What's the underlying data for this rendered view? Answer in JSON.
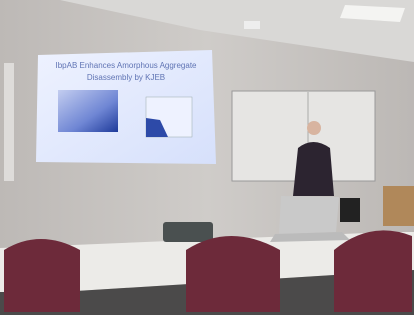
{
  "slide": {
    "title_lines": [
      "IbpAB Enhances Amorphous Aggregate",
      "Disassembly by KJEB"
    ]
  }
}
